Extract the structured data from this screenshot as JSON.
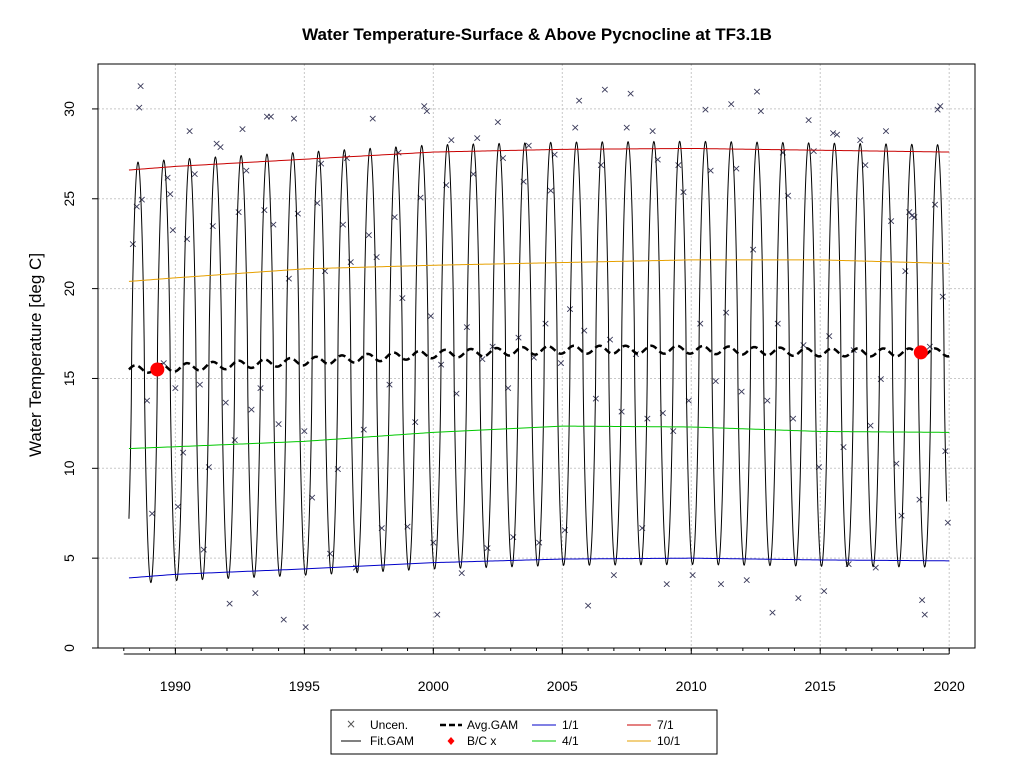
{
  "chart_data": {
    "type": "line",
    "title": "Water Temperature-Surface & Above Pycnocline at TF3.1B",
    "xlabel": "",
    "ylabel": "Water Temperature [deg C]",
    "xlim": [
      1987.0,
      2021.0
    ],
    "ylim": [
      0,
      32.5
    ],
    "xticks": [
      "1990",
      "1995",
      "2000",
      "2005",
      "2010",
      "2015",
      "2020"
    ],
    "yticks": [
      "0",
      "5",
      "10",
      "15",
      "20",
      "25",
      "30"
    ],
    "grid": true,
    "legend_position": "bottom-center",
    "legend": {
      "uncen": "Uncen.",
      "fit_gam": "Fit.GAM",
      "avg_gam": "Avg.GAM",
      "bc": "B/C x",
      "jan": "1/1",
      "apr": "4/1",
      "jul": "7/1",
      "oct": "10/1"
    },
    "colors": {
      "uncen": "#3a3a5a",
      "fit_gam": "#000000",
      "avg_gam": "#000000",
      "bc": "#ff0000",
      "jan": "#0000c8",
      "apr": "#00c800",
      "jul": "#c80000",
      "oct": "#e6a000"
    },
    "series": [
      {
        "name": "1/1",
        "x": [
          1988.2,
          1990,
          1995,
          2000,
          2005,
          2010,
          2015,
          2020
        ],
        "values": [
          3.9,
          4.1,
          4.4,
          4.75,
          4.95,
          5.0,
          4.9,
          4.85
        ]
      },
      {
        "name": "4/1",
        "x": [
          1988.2,
          1990,
          1995,
          2000,
          2005,
          2010,
          2015,
          2020
        ],
        "values": [
          11.1,
          11.2,
          11.5,
          12.0,
          12.35,
          12.3,
          12.05,
          12.0
        ]
      },
      {
        "name": "7/1",
        "x": [
          1988.2,
          1990,
          1995,
          2000,
          2005,
          2010,
          2015,
          2020
        ],
        "values": [
          26.6,
          26.8,
          27.2,
          27.6,
          27.75,
          27.8,
          27.7,
          27.6
        ]
      },
      {
        "name": "10/1",
        "x": [
          1988.2,
          1990,
          1995,
          2000,
          2005,
          2010,
          2015,
          2020
        ],
        "values": [
          20.4,
          20.6,
          21.1,
          21.3,
          21.45,
          21.6,
          21.6,
          21.4
        ]
      },
      {
        "name": "Avg.GAM",
        "x": [
          1988.2,
          1990,
          1995,
          2000,
          2005,
          2010,
          2015,
          2020
        ],
        "values": [
          15.5,
          15.6,
          15.95,
          16.35,
          16.6,
          16.6,
          16.45,
          16.45
        ]
      }
    ],
    "bc_points": [
      {
        "x": 1989.3,
        "y": 15.5
      },
      {
        "x": 2018.9,
        "y": 16.45
      }
    ],
    "fit_gam": {
      "x_start": 1988.2,
      "x_end": 2019.9,
      "peak_range": [
        27.2,
        28.6
      ],
      "trough_range": [
        3.5,
        4.8
      ]
    },
    "uncensored_obs": [
      [
        1988.35,
        22.5
      ],
      [
        1988.5,
        24.6
      ],
      [
        1988.6,
        30.1
      ],
      [
        1988.65,
        31.3
      ],
      [
        1988.7,
        25.0
      ],
      [
        1988.9,
        13.8
      ],
      [
        1989.1,
        7.5
      ],
      [
        1989.55,
        15.9
      ],
      [
        1989.7,
        26.2
      ],
      [
        1989.8,
        25.3
      ],
      [
        1989.9,
        23.3
      ],
      [
        1990.0,
        14.5
      ],
      [
        1990.1,
        7.9
      ],
      [
        1990.3,
        10.9
      ],
      [
        1990.45,
        22.8
      ],
      [
        1990.55,
        28.8
      ],
      [
        1990.75,
        26.4
      ],
      [
        1990.95,
        14.7
      ],
      [
        1991.1,
        5.5
      ],
      [
        1991.3,
        10.1
      ],
      [
        1991.45,
        23.5
      ],
      [
        1991.6,
        28.1
      ],
      [
        1991.75,
        27.9
      ],
      [
        1991.95,
        13.7
      ],
      [
        1992.1,
        2.5
      ],
      [
        1992.3,
        11.6
      ],
      [
        1992.45,
        24.3
      ],
      [
        1992.6,
        28.9
      ],
      [
        1992.75,
        26.6
      ],
      [
        1992.95,
        13.3
      ],
      [
        1993.1,
        3.1
      ],
      [
        1993.3,
        14.5
      ],
      [
        1993.45,
        24.4
      ],
      [
        1993.55,
        29.6
      ],
      [
        1993.7,
        29.6
      ],
      [
        1993.8,
        23.6
      ],
      [
        1994.0,
        12.5
      ],
      [
        1994.2,
        1.6
      ],
      [
        1994.4,
        20.6
      ],
      [
        1994.6,
        29.5
      ],
      [
        1994.75,
        24.2
      ],
      [
        1995.0,
        12.1
      ],
      [
        1995.05,
        1.2
      ],
      [
        1995.3,
        8.4
      ],
      [
        1995.5,
        24.8
      ],
      [
        1995.65,
        27.0
      ],
      [
        1995.8,
        21.0
      ],
      [
        1996.0,
        5.3
      ],
      [
        1996.3,
        10.0
      ],
      [
        1996.5,
        23.6
      ],
      [
        1996.65,
        27.3
      ],
      [
        1996.8,
        21.5
      ],
      [
        1997.0,
        4.5
      ],
      [
        1997.3,
        12.2
      ],
      [
        1997.5,
        23.0
      ],
      [
        1997.65,
        29.5
      ],
      [
        1997.8,
        21.8
      ],
      [
        1998.0,
        6.7
      ],
      [
        1998.3,
        14.7
      ],
      [
        1998.5,
        24.0
      ],
      [
        1998.65,
        27.6
      ],
      [
        1998.8,
        19.5
      ],
      [
        1999.0,
        6.8
      ],
      [
        1999.3,
        12.6
      ],
      [
        1999.5,
        25.1
      ],
      [
        1999.65,
        30.2
      ],
      [
        1999.75,
        29.9
      ],
      [
        1999.9,
        18.5
      ],
      [
        2000.0,
        5.9
      ],
      [
        2000.15,
        1.9
      ],
      [
        2000.3,
        15.8
      ],
      [
        2000.5,
        25.8
      ],
      [
        2000.7,
        28.3
      ],
      [
        2000.9,
        14.2
      ],
      [
        2001.1,
        4.2
      ],
      [
        2001.3,
        17.9
      ],
      [
        2001.55,
        26.4
      ],
      [
        2001.7,
        28.4
      ],
      [
        2001.9,
        16.1
      ],
      [
        2002.1,
        5.6
      ],
      [
        2002.3,
        16.8
      ],
      [
        2002.5,
        29.3
      ],
      [
        2002.7,
        27.3
      ],
      [
        2002.9,
        14.5
      ],
      [
        2003.1,
        6.2
      ],
      [
        2003.3,
        17.3
      ],
      [
        2003.5,
        26.0
      ],
      [
        2003.7,
        28.0
      ],
      [
        2003.9,
        16.2
      ],
      [
        2004.1,
        5.9
      ],
      [
        2004.35,
        18.1
      ],
      [
        2004.55,
        25.5
      ],
      [
        2004.7,
        27.5
      ],
      [
        2004.95,
        15.9
      ],
      [
        2005.1,
        6.6
      ],
      [
        2005.3,
        18.9
      ],
      [
        2005.5,
        29.0
      ],
      [
        2005.65,
        30.5
      ],
      [
        2005.85,
        17.7
      ],
      [
        2006.0,
        2.4
      ],
      [
        2006.3,
        13.9
      ],
      [
        2006.5,
        26.9
      ],
      [
        2006.65,
        31.1
      ],
      [
        2006.85,
        17.2
      ],
      [
        2007.0,
        4.1
      ],
      [
        2007.3,
        13.2
      ],
      [
        2007.5,
        29.0
      ],
      [
        2007.65,
        30.9
      ],
      [
        2007.85,
        16.4
      ],
      [
        2008.1,
        6.7
      ],
      [
        2008.3,
        12.8
      ],
      [
        2008.5,
        28.8
      ],
      [
        2008.7,
        27.2
      ],
      [
        2008.9,
        13.1
      ],
      [
        2009.05,
        3.6
      ],
      [
        2009.3,
        12.1
      ],
      [
        2009.5,
        26.9
      ],
      [
        2009.7,
        25.4
      ],
      [
        2009.9,
        13.8
      ],
      [
        2010.05,
        4.1
      ],
      [
        2010.35,
        18.1
      ],
      [
        2010.55,
        30.0
      ],
      [
        2010.75,
        26.6
      ],
      [
        2010.95,
        14.9
      ],
      [
        2011.15,
        3.6
      ],
      [
        2011.35,
        18.7
      ],
      [
        2011.55,
        30.3
      ],
      [
        2011.75,
        26.7
      ],
      [
        2011.95,
        14.3
      ],
      [
        2012.15,
        3.8
      ],
      [
        2012.4,
        22.2
      ],
      [
        2012.55,
        31.0
      ],
      [
        2012.7,
        29.9
      ],
      [
        2012.95,
        13.8
      ],
      [
        2013.15,
        2.0
      ],
      [
        2013.35,
        18.1
      ],
      [
        2013.55,
        27.6
      ],
      [
        2013.75,
        25.2
      ],
      [
        2013.95,
        12.8
      ],
      [
        2014.15,
        2.8
      ],
      [
        2014.35,
        16.9
      ],
      [
        2014.55,
        29.4
      ],
      [
        2014.75,
        27.7
      ],
      [
        2014.95,
        10.1
      ],
      [
        2015.15,
        3.2
      ],
      [
        2015.35,
        17.4
      ],
      [
        2015.5,
        28.7
      ],
      [
        2015.65,
        28.6
      ],
      [
        2015.9,
        11.2
      ],
      [
        2016.1,
        4.7
      ],
      [
        2016.3,
        16.6
      ],
      [
        2016.55,
        28.3
      ],
      [
        2016.75,
        26.9
      ],
      [
        2016.95,
        12.4
      ],
      [
        2017.15,
        4.5
      ],
      [
        2017.35,
        15.0
      ],
      [
        2017.55,
        28.8
      ],
      [
        2017.75,
        23.8
      ],
      [
        2017.95,
        10.3
      ],
      [
        2018.15,
        7.4
      ],
      [
        2018.3,
        21.0
      ],
      [
        2018.45,
        24.3
      ],
      [
        2018.55,
        24.1
      ],
      [
        2018.65,
        24.0
      ],
      [
        2018.85,
        8.3
      ],
      [
        2018.95,
        2.7
      ],
      [
        2019.05,
        1.9
      ],
      [
        2019.25,
        16.8
      ],
      [
        2019.45,
        24.7
      ],
      [
        2019.55,
        30.0
      ],
      [
        2019.65,
        30.2
      ],
      [
        2019.75,
        19.6
      ],
      [
        2019.85,
        11.0
      ],
      [
        2019.95,
        7.0
      ]
    ]
  }
}
